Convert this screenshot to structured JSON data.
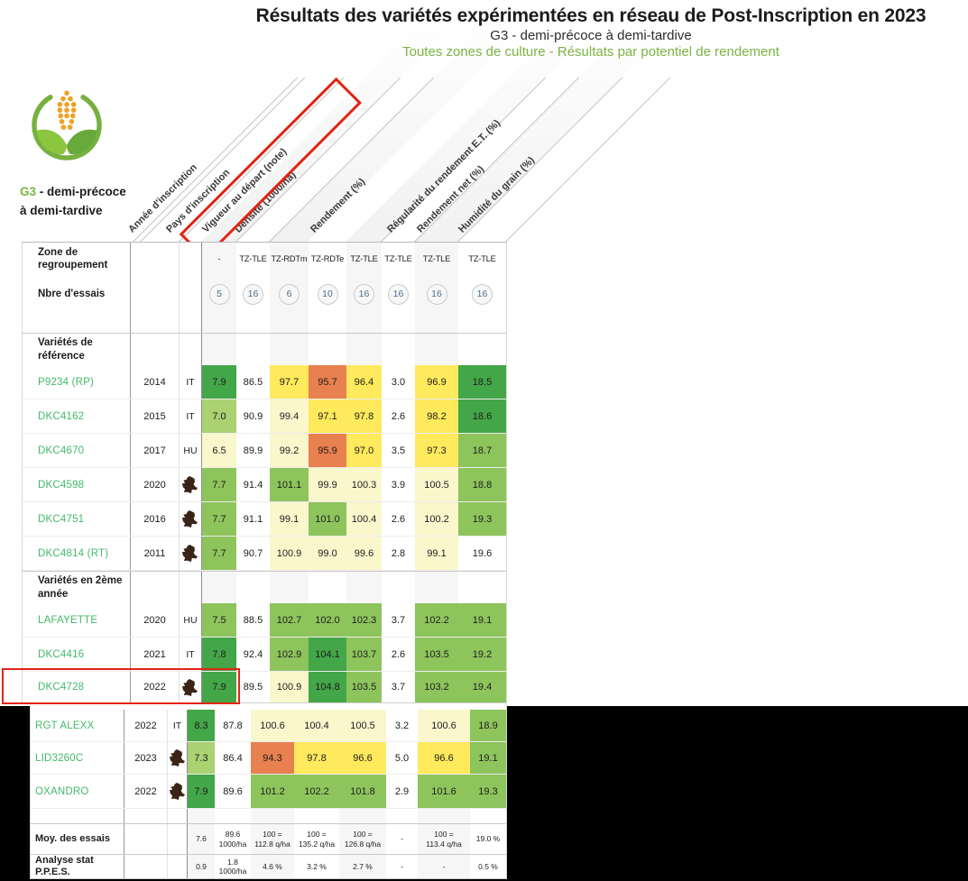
{
  "page": {
    "title": "Résultats des variétés expérimentées en réseau de Post-Inscription en 2023",
    "subtitle": "G3 - demi-précoce à demi-tardive",
    "subtitle2": "Toutes zones de culture - Résultats par potentiel de rendement"
  },
  "group_badge": {
    "code": "G3",
    "name_line1": "- demi-précoce",
    "name_line2": "à demi-tardive"
  },
  "annotations": {
    "header_highlight": "Vigueur au départ (note)",
    "row_highlight": "DKC4728"
  },
  "colors": {
    "accent_green": "#7cb342",
    "variety_green": "#43b96a",
    "highlight_red": "#e42313",
    "cell_dark_green": "#43a648",
    "cell_mid_green": "#8ec45c",
    "cell_light_green": "#aad172",
    "cell_pale_yellow": "#fbf7cd",
    "cell_yellow": "#ffe95c",
    "cell_orange": "#e8804f",
    "count_text_blue": "#4a6f8e",
    "france_icon_brown": "#3a2317"
  },
  "chart_data": {
    "type": "table",
    "title": "Résultats des variétés expérimentées en réseau de Post-Inscription en 2023",
    "column_headers": [
      "Année d'inscription",
      "Pays d'inscription",
      "Vigueur au départ (note)",
      "Densité (1000/ha)",
      "Rendement (%)",
      "Régularité du rendement E.T. (%)",
      "Rendement net (%)",
      "Humidité du grain (%)"
    ],
    "zone_row_label": "Zone de regroupement",
    "zone_de_regroupement": [
      "-",
      "TZ-TLE",
      "TZ-RDTm",
      "TZ-RDTe",
      "TZ-TLE",
      "TZ-TLE",
      "TZ-TLE",
      "TZ-TLE"
    ],
    "essais_row_label": "Nbre d'essais",
    "nbre_essais": [
      "5",
      "16",
      "6",
      "10",
      "16",
      "16",
      "16",
      "16"
    ],
    "sections": [
      {
        "label": "Variétés de référence",
        "rows": [
          {
            "name": "P9234 (RP)",
            "year": "2014",
            "country": "IT",
            "values": [
              "7.9",
              "86.5",
              "97.7",
              "95.7",
              "96.4",
              "3.0",
              "96.9",
              "18.5"
            ],
            "cell_colors": [
              "dg",
              "",
              "yl",
              "or",
              "yl",
              "",
              "yl",
              "dg"
            ]
          },
          {
            "name": "DKC4162",
            "year": "2015",
            "country": "IT",
            "values": [
              "7.0",
              "90.9",
              "99.4",
              "97.1",
              "97.8",
              "2.6",
              "98.2",
              "18.6"
            ],
            "cell_colors": [
              "lg",
              "",
              "py",
              "yl",
              "yl",
              "",
              "yl",
              "dg"
            ]
          },
          {
            "name": "DKC4670",
            "year": "2017",
            "country": "HU",
            "values": [
              "6.5",
              "89.9",
              "99.2",
              "95.9",
              "97.0",
              "3.5",
              "97.3",
              "18.7"
            ],
            "cell_colors": [
              "py",
              "",
              "py",
              "or",
              "yl",
              "",
              "yl",
              "mg"
            ]
          },
          {
            "name": "DKC4598",
            "year": "2020",
            "country": "FR",
            "values": [
              "7.7",
              "91.4",
              "101.1",
              "99.9",
              "100.3",
              "3.9",
              "100.5",
              "18.8"
            ],
            "cell_colors": [
              "mg",
              "",
              "mg",
              "py",
              "py",
              "",
              "py",
              "mg"
            ]
          },
          {
            "name": "DKC4751",
            "year": "2016",
            "country": "FR",
            "values": [
              "7.7",
              "91.1",
              "99.1",
              "101.0",
              "100.4",
              "2.6",
              "100.2",
              "19.3"
            ],
            "cell_colors": [
              "mg",
              "",
              "py",
              "mg",
              "py",
              "",
              "py",
              "mg"
            ]
          },
          {
            "name": "DKC4814 (RT)",
            "year": "2011",
            "country": "FR",
            "values": [
              "7.7",
              "90.7",
              "100.9",
              "99.0",
              "99.6",
              "2.8",
              "99.1",
              "19.6"
            ],
            "cell_colors": [
              "mg",
              "",
              "py",
              "py",
              "py",
              "",
              "py",
              ""
            ]
          }
        ]
      },
      {
        "label": "Variétés en 2ème année",
        "rows": [
          {
            "name": "LAFAYETTE",
            "year": "2020",
            "country": "HU",
            "values": [
              "7.5",
              "88.5",
              "102.7",
              "102.0",
              "102.3",
              "3.7",
              "102.2",
              "19.1"
            ],
            "cell_colors": [
              "mg",
              "",
              "mg",
              "mg",
              "mg",
              "",
              "mg",
              "mg"
            ]
          },
          {
            "name": "DKC4416",
            "year": "2021",
            "country": "IT",
            "values": [
              "7.8",
              "92.4",
              "102.9",
              "104.1",
              "103.7",
              "2.6",
              "103.5",
              "19.2"
            ],
            "cell_colors": [
              "dg",
              "",
              "mg",
              "dg",
              "mg",
              "",
              "mg",
              "mg"
            ]
          },
          {
            "name": "DKC4728",
            "year": "2022",
            "country": "FR",
            "values": [
              "7.9",
              "89.5",
              "100.9",
              "104.8",
              "103.5",
              "3.7",
              "103.2",
              "19.4"
            ],
            "cell_colors": [
              "dg",
              "",
              "py",
              "dg",
              "mg",
              "",
              "mg",
              "mg"
            ]
          }
        ]
      }
    ],
    "second_block_rows": [
      {
        "name": "RGT ALEXX",
        "year": "2022",
        "country": "IT",
        "values": [
          "8.3",
          "87.8",
          "100.6",
          "100.4",
          "100.5",
          "3.2",
          "100.6",
          "18.9"
        ],
        "cell_colors": [
          "dg",
          "",
          "py",
          "py",
          "py",
          "",
          "py",
          "mg"
        ]
      },
      {
        "name": "LID3260C",
        "year": "2023",
        "country": "FR",
        "values": [
          "7.3",
          "86.4",
          "94.3",
          "97.8",
          "96.6",
          "5.0",
          "96.6",
          "19.1"
        ],
        "cell_colors": [
          "lg",
          "",
          "or",
          "yl",
          "yl",
          "",
          "yl",
          "mg"
        ]
      },
      {
        "name": "OXANDRO",
        "year": "2022",
        "country": "FR",
        "values": [
          "7.9",
          "89.6",
          "101.2",
          "102.2",
          "101.8",
          "2.9",
          "101.6",
          "19.3"
        ],
        "cell_colors": [
          "dg",
          "",
          "mg",
          "mg",
          "mg",
          "",
          "mg",
          "mg"
        ]
      }
    ],
    "footer_rows": [
      {
        "label": "Moy. des essais",
        "values": [
          "7.6",
          "89.6\n1000/ha",
          "100 =\n112.8 q/ha",
          "100 =\n135.2 q/ha",
          "100 =\n126.8 q/ha",
          "-",
          "100 =\n113.4 q/ha",
          "19.0 %"
        ]
      },
      {
        "label": "Analyse stat\nP.P.E.S.",
        "values": [
          "0.9",
          "1.8\n1000/ha",
          "4.6 %",
          "3.2 %",
          "2.7 %",
          "-",
          "-",
          "0.5 %"
        ]
      }
    ]
  }
}
